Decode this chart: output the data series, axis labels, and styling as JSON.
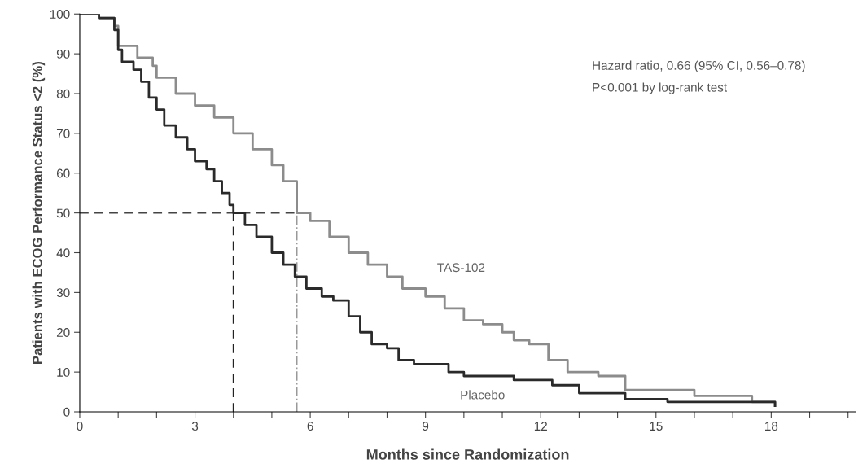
{
  "chart_data": {
    "type": "step",
    "xlabel": "Months since Randomization",
    "ylabel": "Patients with ECOG Performance Status <2 (%)",
    "annotations": [
      "Hazard ratio, 0.66 (95% CI, 0.56–0.78)",
      "P<0.001 by log-rank test"
    ],
    "xlim": [
      0,
      20.2
    ],
    "ylim": [
      0,
      100
    ],
    "xticks": [
      0,
      {
        "value": 1,
        "label": null
      },
      {
        "value": 2,
        "label": null
      },
      3,
      {
        "value": 4,
        "label": null
      },
      {
        "value": 5,
        "label": null
      },
      6,
      {
        "value": 7,
        "label": null
      },
      {
        "value": 8,
        "label": null
      },
      9,
      {
        "value": 10,
        "label": null
      },
      {
        "value": 11,
        "label": null
      },
      12,
      {
        "value": 13,
        "label": null
      },
      {
        "value": 14,
        "label": null
      },
      15,
      {
        "value": 16,
        "label": null
      },
      {
        "value": 17,
        "label": null
      },
      18,
      {
        "value": 19,
        "label": null
      },
      {
        "value": 20,
        "label": null
      }
    ],
    "yticks": [
      0,
      10,
      20,
      30,
      40,
      50,
      60,
      70,
      80,
      90,
      100
    ],
    "grid": false,
    "legend": false,
    "ref_lines": [
      {
        "axis": "y",
        "value": 50,
        "color": "#444444",
        "line_style": "dashed"
      },
      {
        "axis": "x",
        "value": 4.0,
        "color": "#222222",
        "line_style": "dashed"
      },
      {
        "axis": "x",
        "value": 5.65,
        "color": "#999999",
        "line_style": "dashdot"
      }
    ],
    "series": [
      {
        "name": "TAS-102",
        "color": "#8c8c8c",
        "x": [
          0,
          0.5,
          0.9,
          1.0,
          1.5,
          1.9,
          2.0,
          2.5,
          3.0,
          3.5,
          4.0,
          4.5,
          5.0,
          5.3,
          5.65,
          6.0,
          6.5,
          7.0,
          7.5,
          8.0,
          8.4,
          9.0,
          9.5,
          10.0,
          10.5,
          11.0,
          11.3,
          11.7,
          12.2,
          12.7,
          13.5,
          14.2,
          16.0,
          17.5,
          18.1
        ],
        "values": [
          100,
          99,
          97,
          92,
          89,
          87,
          84,
          80,
          77,
          74,
          70,
          66,
          62,
          58,
          50,
          48,
          44,
          40,
          37,
          34,
          31,
          29,
          26,
          23,
          22,
          20,
          18,
          17,
          13,
          10,
          9,
          5.5,
          4,
          2.5,
          1.5
        ]
      },
      {
        "name": "Placebo",
        "color": "#2a2a2a",
        "x": [
          0,
          0.5,
          0.9,
          1.0,
          1.1,
          1.4,
          1.6,
          1.8,
          2.0,
          2.2,
          2.5,
          2.8,
          3.0,
          3.3,
          3.5,
          3.7,
          3.9,
          4.0,
          4.3,
          4.6,
          5.0,
          5.3,
          5.6,
          5.9,
          6.3,
          6.6,
          7.0,
          7.3,
          7.6,
          8.0,
          8.3,
          8.7,
          9.6,
          10.0,
          11.3,
          12.3,
          13.0,
          14.2,
          15.3,
          18.1
        ],
        "values": [
          100,
          99,
          96,
          91,
          88,
          86,
          83,
          79,
          76,
          72,
          69,
          66,
          63,
          61,
          58,
          55,
          52,
          50,
          47,
          44,
          40,
          37,
          34,
          31,
          29,
          28,
          24,
          20,
          17,
          16,
          13,
          12,
          10,
          9,
          8,
          6.7,
          4.7,
          3.2,
          2.5,
          1.5
        ]
      }
    ]
  }
}
